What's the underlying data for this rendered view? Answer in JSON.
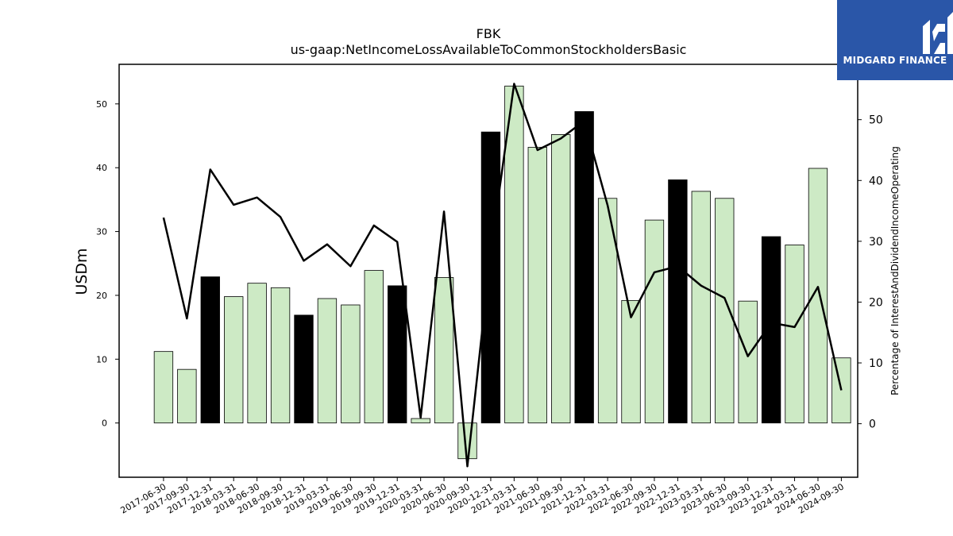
{
  "chart_data": {
    "type": "bar",
    "title": "FBK",
    "subtitle": "us-gaap:NetIncomeLossAvailableToCommonStockholdersBasic",
    "ylabel": "USDm",
    "y2label": "Percentage of InterestAndDividendIncomeOperating",
    "ylim": [
      -8.5,
      56.2
    ],
    "y2lim": [
      -8.8,
      59.1
    ],
    "yticks": [
      0,
      10,
      20,
      30,
      40,
      50
    ],
    "y2ticks": [
      0,
      10,
      20,
      30,
      40,
      50
    ],
    "categories": [
      "2017-06-30",
      "2017-09-30",
      "2017-12-31",
      "2018-03-31",
      "2018-06-30",
      "2018-09-30",
      "2018-12-31",
      "2019-03-31",
      "2019-06-30",
      "2019-09-30",
      "2019-12-31",
      "2020-03-31",
      "2020-06-30",
      "2020-09-30",
      "2020-12-31",
      "2021-03-31",
      "2021-06-30",
      "2021-09-30",
      "2021-12-31",
      "2022-03-31",
      "2022-06-30",
      "2022-09-30",
      "2022-12-31",
      "2023-03-31",
      "2023-06-30",
      "2023-09-30",
      "2023-12-31",
      "2024-03-31",
      "2024-06-30",
      "2024-09-30"
    ],
    "series": [
      {
        "type": "bar",
        "axis": "left",
        "values": [
          11.2,
          8.4,
          22.9,
          19.8,
          21.9,
          21.2,
          16.9,
          19.5,
          18.5,
          23.9,
          21.5,
          0.7,
          22.8,
          -5.6,
          45.6,
          52.8,
          43.2,
          45.2,
          48.8,
          35.2,
          19.2,
          31.8,
          38.1,
          36.3,
          35.2,
          19.1,
          29.2,
          27.9,
          39.9,
          10.2
        ],
        "highlight": [
          false,
          false,
          true,
          false,
          false,
          false,
          true,
          false,
          false,
          false,
          true,
          false,
          false,
          false,
          true,
          false,
          false,
          false,
          true,
          false,
          false,
          false,
          true,
          false,
          false,
          false,
          true,
          false,
          false,
          false
        ],
        "color": "#cdeac5",
        "highlight_color": "#000000"
      },
      {
        "type": "line",
        "axis": "right",
        "values": [
          33.9,
          17.3,
          41.8,
          36.0,
          37.2,
          34.0,
          26.8,
          29.5,
          25.9,
          32.6,
          29.9,
          1.0,
          34.9,
          -7.0,
          28.2,
          55.9,
          45.0,
          46.9,
          49.8,
          35.9,
          17.5,
          24.9,
          25.9,
          22.7,
          20.7,
          11.1,
          16.6,
          15.9,
          22.5,
          5.5
        ],
        "color": "#000000"
      }
    ]
  },
  "logo": {
    "text": "MIDGARD FINANCE"
  }
}
